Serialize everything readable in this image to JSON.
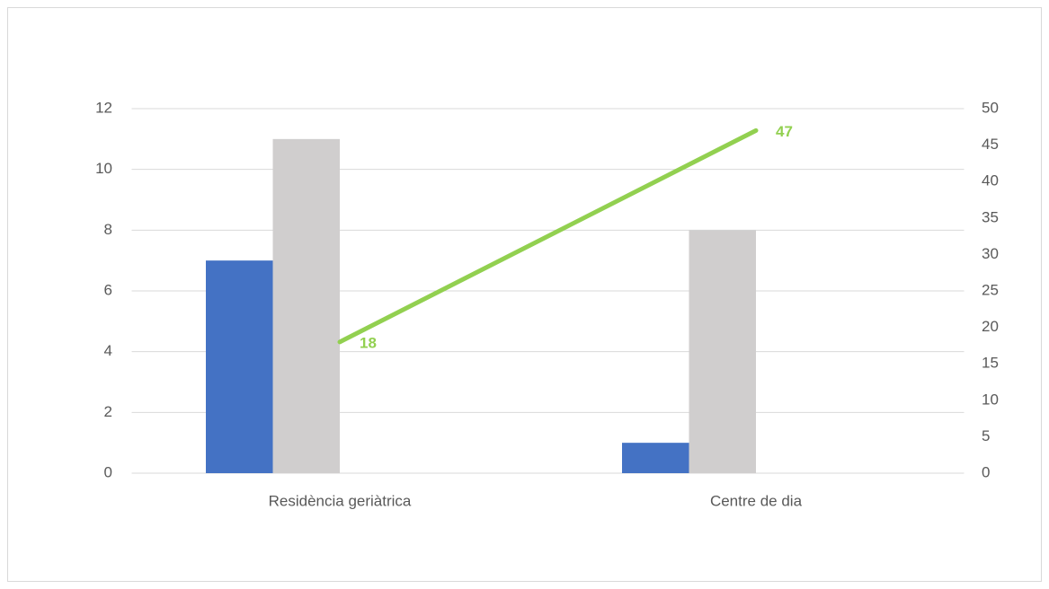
{
  "chart_data": {
    "type": "bar",
    "categories": [
      "Residència geriàtrica",
      "Centre de dia"
    ],
    "series": [
      {
        "color": "#4472c4",
        "values": [
          7,
          1
        ]
      },
      {
        "color": "#d0cece",
        "values": [
          11,
          8
        ]
      },
      {
        "type": "line",
        "axis": "y2",
        "color": "#92d050",
        "values": [
          18,
          47
        ]
      }
    ],
    "ylim": [
      0,
      12
    ],
    "yticks": [
      0,
      2,
      4,
      6,
      8,
      10,
      12
    ],
    "y2lim": [
      0,
      50
    ],
    "y2ticks": [
      0,
      5,
      10,
      15,
      20,
      25,
      30,
      35,
      40,
      45,
      50
    ],
    "grid": true
  }
}
